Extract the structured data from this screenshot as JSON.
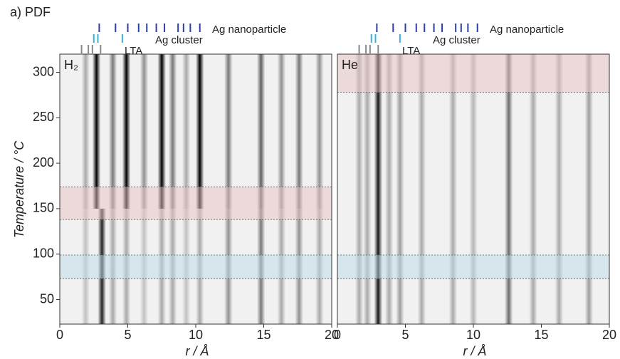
{
  "chart_data": {
    "type": "heatmap",
    "title": "a) PDF",
    "xlabel": "r / Å",
    "ylabel": "Temperature / °C",
    "xlim": [
      0,
      20
    ],
    "xticks": [
      0,
      5,
      10,
      15,
      20
    ],
    "ylim": [
      23,
      320
    ],
    "yticks": [
      50,
      100,
      150,
      200,
      250,
      300
    ],
    "references": [
      {
        "name": "Ag nanoparticle",
        "color": "#2b3fa8",
        "r": [
          2.9,
          4.1,
          5.0,
          5.8,
          6.4,
          7.1,
          7.7,
          8.7,
          9.1,
          9.6,
          10.3
        ]
      },
      {
        "name": "Ag cluster",
        "color": "#3ab0e0",
        "r": [
          2.5,
          2.8,
          4.6
        ]
      },
      {
        "name": "LTA",
        "color": "#888888",
        "r": [
          1.6,
          2.1,
          2.4,
          3.0
        ]
      }
    ],
    "panels": [
      {
        "label": "H₂",
        "bands": [
          {
            "tlim": [
              138,
              174
            ],
            "color": "#e8c4c4"
          },
          {
            "tlim": [
              73,
              99
            ],
            "color": "#bcdce8"
          }
        ],
        "regimes": [
          {
            "tlim": [
              23,
              150
            ],
            "peaks": [
              {
                "r": 1.9,
                "intensity": 0.2
              },
              {
                "r": 3.1,
                "intensity": 0.85
              },
              {
                "r": 3.9,
                "intensity": 0.3
              },
              {
                "r": 4.9,
                "intensity": 0.3
              },
              {
                "r": 6.2,
                "intensity": 0.2
              },
              {
                "r": 7.5,
                "intensity": 0.3
              },
              {
                "r": 8.3,
                "intensity": 0.3
              },
              {
                "r": 9.3,
                "intensity": 0.2
              },
              {
                "r": 10.3,
                "intensity": 0.3
              },
              {
                "r": 12.4,
                "intensity": 0.4
              },
              {
                "r": 14.8,
                "intensity": 0.5
              },
              {
                "r": 16.3,
                "intensity": 0.3
              },
              {
                "r": 17.6,
                "intensity": 0.4
              },
              {
                "r": 19.1,
                "intensity": 0.3
              }
            ]
          },
          {
            "tlim": [
              150,
              320
            ],
            "peaks": [
              {
                "r": 1.9,
                "intensity": 0.3
              },
              {
                "r": 2.7,
                "intensity": 1
              },
              {
                "r": 3.9,
                "intensity": 0.5
              },
              {
                "r": 4.9,
                "intensity": 1
              },
              {
                "r": 6.2,
                "intensity": 0.4
              },
              {
                "r": 7.5,
                "intensity": 1
              },
              {
                "r": 8.3,
                "intensity": 0.5
              },
              {
                "r": 9.3,
                "intensity": 0.3
              },
              {
                "r": 10.3,
                "intensity": 1
              },
              {
                "r": 12.4,
                "intensity": 0.5
              },
              {
                "r": 14.8,
                "intensity": 0.6
              },
              {
                "r": 16.3,
                "intensity": 0.4
              },
              {
                "r": 17.6,
                "intensity": 0.5
              },
              {
                "r": 19.1,
                "intensity": 0.4
              }
            ]
          }
        ]
      },
      {
        "label": "He",
        "bands": [
          {
            "tlim": [
              278,
              320
            ],
            "color": "#e8c4c4"
          },
          {
            "tlim": [
              73,
              99
            ],
            "color": "#bcdce8"
          }
        ],
        "regimes": [
          {
            "tlim": [
              23,
              320
            ],
            "peaks": [
              {
                "r": 1.6,
                "intensity": 0.3
              },
              {
                "r": 2.2,
                "intensity": 0.3
              },
              {
                "r": 3.0,
                "intensity": 0.9
              },
              {
                "r": 3.8,
                "intensity": 0.3
              },
              {
                "r": 4.6,
                "intensity": 0.35
              },
              {
                "r": 6.2,
                "intensity": 0.3
              },
              {
                "r": 8.5,
                "intensity": 0.3
              },
              {
                "r": 10.0,
                "intensity": 0.25
              },
              {
                "r": 12.6,
                "intensity": 0.55
              },
              {
                "r": 14.4,
                "intensity": 0.3
              },
              {
                "r": 16.3,
                "intensity": 0.3
              },
              {
                "r": 18.5,
                "intensity": 0.35
              }
            ]
          }
        ]
      }
    ]
  }
}
